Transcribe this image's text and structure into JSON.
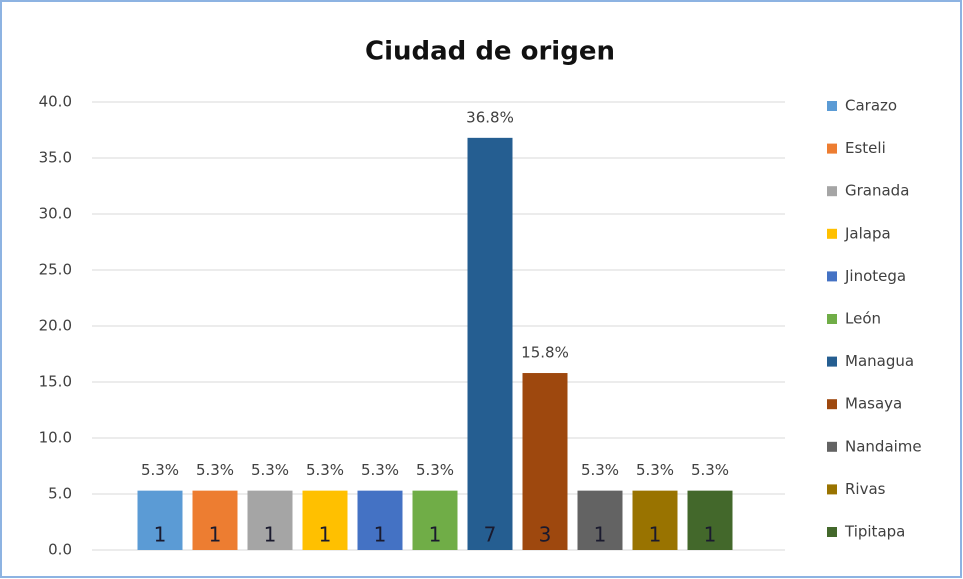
{
  "chart_data": {
    "type": "bar",
    "title": "Ciudad de origen",
    "ylim": [
      0,
      40
    ],
    "yticks": [
      {
        "value": 0,
        "label": "0.0"
      },
      {
        "value": 5,
        "label": "5.0"
      },
      {
        "value": 10,
        "label": "10.0"
      },
      {
        "value": 15,
        "label": "15.0"
      },
      {
        "value": 20,
        "label": "20.0"
      },
      {
        "value": 25,
        "label": "25.0"
      },
      {
        "value": 30,
        "label": "30.0"
      },
      {
        "value": 35,
        "label": "35.0"
      },
      {
        "value": 40,
        "label": "40.0"
      }
    ],
    "grid": true,
    "legend": "right",
    "series": [
      {
        "name": "Carazo",
        "color": "#5b9bd5",
        "values": [
          5.3
        ],
        "value_labels": [
          "5.3%"
        ],
        "counts": [
          1
        ]
      },
      {
        "name": "Esteli",
        "color": "#ed7d31",
        "values": [
          5.3
        ],
        "value_labels": [
          "5.3%"
        ],
        "counts": [
          1
        ]
      },
      {
        "name": "Granada",
        "color": "#a5a5a5",
        "values": [
          5.3
        ],
        "value_labels": [
          "5.3%"
        ],
        "counts": [
          1
        ]
      },
      {
        "name": "Jalapa",
        "color": "#ffc000",
        "values": [
          5.3
        ],
        "value_labels": [
          "5.3%"
        ],
        "counts": [
          1
        ]
      },
      {
        "name": "Jinotega",
        "color": "#4472c4",
        "values": [
          5.3
        ],
        "value_labels": [
          "5.3%"
        ],
        "counts": [
          1
        ]
      },
      {
        "name": "León",
        "color": "#70ad47",
        "values": [
          5.3
        ],
        "value_labels": [
          "5.3%"
        ],
        "counts": [
          1
        ]
      },
      {
        "name": "Managua",
        "color": "#255e91",
        "values": [
          36.8
        ],
        "value_labels": [
          "36.8%"
        ],
        "counts": [
          7
        ]
      },
      {
        "name": "Masaya",
        "color": "#9e480e",
        "values": [
          15.8
        ],
        "value_labels": [
          "15.8%"
        ],
        "counts": [
          3
        ]
      },
      {
        "name": "Nandaime",
        "color": "#636363",
        "values": [
          5.3
        ],
        "value_labels": [
          "5.3%"
        ],
        "counts": [
          1
        ]
      },
      {
        "name": "Rivas",
        "color": "#997300",
        "values": [
          5.3
        ],
        "value_labels": [
          "5.3%"
        ],
        "counts": [
          1
        ]
      },
      {
        "name": "Tipitapa",
        "color": "#43682b",
        "values": [
          5.3
        ],
        "value_labels": [
          "5.3%"
        ],
        "counts": [
          1
        ]
      }
    ]
  }
}
